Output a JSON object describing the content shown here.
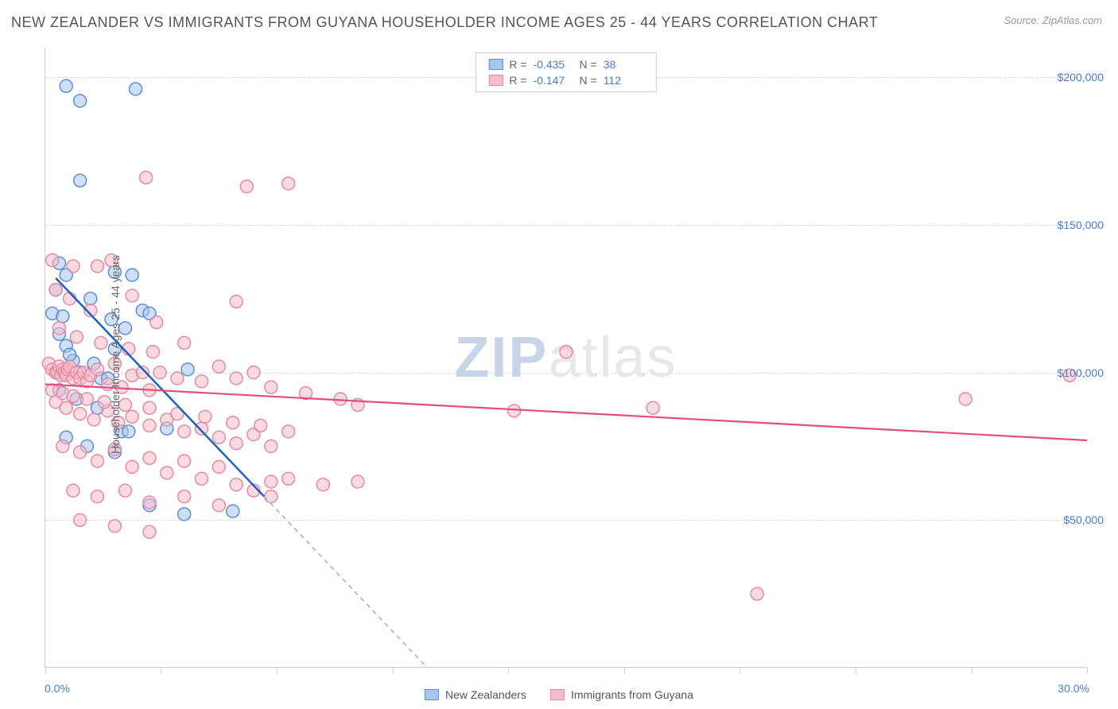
{
  "title": "NEW ZEALANDER VS IMMIGRANTS FROM GUYANA HOUSEHOLDER INCOME AGES 25 - 44 YEARS CORRELATION CHART",
  "source": "Source: ZipAtlas.com",
  "y_axis_label": "Householder Income Ages 25 - 44 years",
  "watermark_a": "ZIP",
  "watermark_b": "atlas",
  "chart": {
    "type": "scatter",
    "xlim": [
      0,
      30
    ],
    "ylim": [
      0,
      210000
    ],
    "x_min_label": "0.0%",
    "x_max_label": "30.0%",
    "x_ticks": [
      0,
      3.33,
      6.67,
      10,
      13.33,
      16.67,
      20,
      23.33,
      26.67,
      30
    ],
    "y_ticks": [
      {
        "v": 50000,
        "label": "$50,000"
      },
      {
        "v": 100000,
        "label": "$100,000"
      },
      {
        "v": 150000,
        "label": "$150,000"
      },
      {
        "v": 200000,
        "label": "$200,000"
      }
    ],
    "grid_color": "#d8d8d8",
    "background_color": "#ffffff",
    "marker_radius": 8,
    "marker_stroke_width": 1.5,
    "series": [
      {
        "name": "New Zealanders",
        "fill": "#a8c5ed",
        "stroke": "#5b8fd6",
        "fill_opacity": 0.55,
        "R": "-0.435",
        "N": "38",
        "trend": {
          "color": "#1f5fc4",
          "width": 2.5,
          "x1": 0.3,
          "y1": 132000,
          "x2": 6.3,
          "y2": 58000,
          "dash_ext_x": 11.0,
          "dash_ext_y": 0
        },
        "points": [
          [
            0.6,
            197000
          ],
          [
            1.0,
            192000
          ],
          [
            2.6,
            196000
          ],
          [
            1.0,
            165000
          ],
          [
            0.4,
            137000
          ],
          [
            0.6,
            133000
          ],
          [
            0.2,
            120000
          ],
          [
            0.5,
            119000
          ],
          [
            2.0,
            134000
          ],
          [
            2.5,
            133000
          ],
          [
            2.8,
            121000
          ],
          [
            3.0,
            120000
          ],
          [
            0.4,
            113000
          ],
          [
            0.6,
            109000
          ],
          [
            0.8,
            104000
          ],
          [
            1.0,
            100000
          ],
          [
            1.6,
            98000
          ],
          [
            1.8,
            98000
          ],
          [
            2.0,
            108000
          ],
          [
            4.1,
            101000
          ],
          [
            0.4,
            94000
          ],
          [
            0.9,
            91000
          ],
          [
            1.5,
            88000
          ],
          [
            2.2,
            80000
          ],
          [
            2.4,
            80000
          ],
          [
            3.5,
            81000
          ],
          [
            0.6,
            78000
          ],
          [
            1.2,
            75000
          ],
          [
            2.0,
            73000
          ],
          [
            3.0,
            55000
          ],
          [
            4.0,
            52000
          ],
          [
            5.4,
            53000
          ],
          [
            0.3,
            128000
          ],
          [
            1.3,
            125000
          ],
          [
            1.9,
            118000
          ],
          [
            2.3,
            115000
          ],
          [
            0.7,
            106000
          ],
          [
            1.4,
            103000
          ]
        ]
      },
      {
        "name": "Immigrants from Guyana",
        "fill": "#f5bcc9",
        "stroke": "#e68aa3",
        "fill_opacity": 0.55,
        "R": "-0.147",
        "N": "112",
        "trend": {
          "color": "#e54d7a",
          "width": 2.2,
          "x1": 0,
          "y1": 96000,
          "x2": 30,
          "y2": 77000
        },
        "points": [
          [
            2.9,
            166000
          ],
          [
            5.8,
            163000
          ],
          [
            7.0,
            164000
          ],
          [
            0.2,
            138000
          ],
          [
            0.8,
            136000
          ],
          [
            1.5,
            136000
          ],
          [
            1.9,
            138000
          ],
          [
            0.3,
            128000
          ],
          [
            0.7,
            125000
          ],
          [
            1.3,
            121000
          ],
          [
            2.5,
            126000
          ],
          [
            3.2,
            117000
          ],
          [
            4.0,
            110000
          ],
          [
            5.5,
            124000
          ],
          [
            0.1,
            103000
          ],
          [
            0.2,
            101000
          ],
          [
            0.3,
            100000
          ],
          [
            0.35,
            100000
          ],
          [
            0.4,
            102000
          ],
          [
            0.45,
            99000
          ],
          [
            0.5,
            101000
          ],
          [
            0.55,
            100000
          ],
          [
            0.6,
            99000
          ],
          [
            0.65,
            101000
          ],
          [
            0.7,
            102000
          ],
          [
            0.8,
            98000
          ],
          [
            0.9,
            100000
          ],
          [
            1.0,
            98000
          ],
          [
            1.1,
            100000
          ],
          [
            1.2,
            97000
          ],
          [
            1.3,
            99000
          ],
          [
            1.5,
            101000
          ],
          [
            1.8,
            96000
          ],
          [
            2.0,
            103000
          ],
          [
            2.2,
            95000
          ],
          [
            2.5,
            99000
          ],
          [
            2.8,
            100000
          ],
          [
            3.0,
            94000
          ],
          [
            3.3,
            100000
          ],
          [
            3.8,
            98000
          ],
          [
            4.5,
            97000
          ],
          [
            5.0,
            102000
          ],
          [
            5.5,
            98000
          ],
          [
            6.0,
            100000
          ],
          [
            6.5,
            95000
          ],
          [
            7.5,
            93000
          ],
          [
            8.5,
            91000
          ],
          [
            9.0,
            89000
          ],
          [
            15.0,
            107000
          ],
          [
            0.3,
            90000
          ],
          [
            0.6,
            88000
          ],
          [
            1.0,
            86000
          ],
          [
            1.4,
            84000
          ],
          [
            1.8,
            87000
          ],
          [
            2.1,
            83000
          ],
          [
            2.5,
            85000
          ],
          [
            3.0,
            82000
          ],
          [
            3.5,
            84000
          ],
          [
            4.0,
            80000
          ],
          [
            4.5,
            81000
          ],
          [
            5.0,
            78000
          ],
          [
            5.5,
            76000
          ],
          [
            6.0,
            79000
          ],
          [
            6.5,
            75000
          ],
          [
            0.5,
            75000
          ],
          [
            1.0,
            73000
          ],
          [
            1.5,
            70000
          ],
          [
            2.0,
            74000
          ],
          [
            2.5,
            68000
          ],
          [
            3.0,
            71000
          ],
          [
            3.5,
            66000
          ],
          [
            4.0,
            70000
          ],
          [
            4.5,
            64000
          ],
          [
            5.0,
            68000
          ],
          [
            5.5,
            62000
          ],
          [
            6.5,
            63000
          ],
          [
            7.0,
            64000
          ],
          [
            8.0,
            62000
          ],
          [
            9.0,
            63000
          ],
          [
            0.8,
            60000
          ],
          [
            1.5,
            58000
          ],
          [
            2.3,
            60000
          ],
          [
            3.0,
            56000
          ],
          [
            4.0,
            58000
          ],
          [
            5.0,
            55000
          ],
          [
            6.0,
            60000
          ],
          [
            6.5,
            58000
          ],
          [
            1.0,
            50000
          ],
          [
            2.0,
            48000
          ],
          [
            3.0,
            46000
          ],
          [
            13.5,
            87000
          ],
          [
            17.5,
            88000
          ],
          [
            26.5,
            91000
          ],
          [
            29.5,
            99000
          ],
          [
            20.5,
            25000
          ],
          [
            0.4,
            115000
          ],
          [
            0.9,
            112000
          ],
          [
            1.6,
            110000
          ],
          [
            2.4,
            108000
          ],
          [
            3.1,
            107000
          ],
          [
            0.2,
            94000
          ],
          [
            0.5,
            93000
          ],
          [
            0.8,
            92000
          ],
          [
            1.2,
            91000
          ],
          [
            1.7,
            90000
          ],
          [
            2.3,
            89000
          ],
          [
            3.0,
            88000
          ],
          [
            3.8,
            86000
          ],
          [
            4.6,
            85000
          ],
          [
            5.4,
            83000
          ],
          [
            6.2,
            82000
          ],
          [
            7.0,
            80000
          ]
        ]
      }
    ]
  },
  "bottom_legend": [
    {
      "label": "New Zealanders",
      "swatch": "blue"
    },
    {
      "label": "Immigrants from Guyana",
      "swatch": "pink"
    }
  ]
}
